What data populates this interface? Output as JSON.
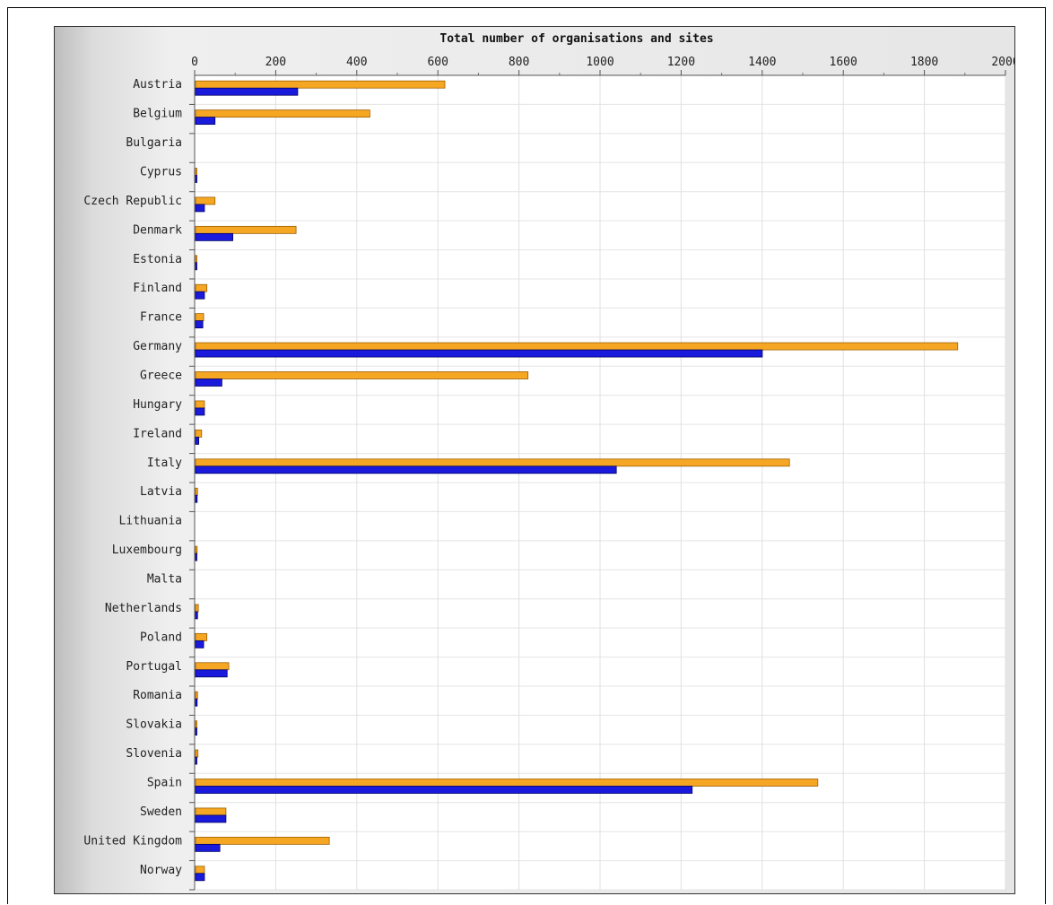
{
  "chart_data": {
    "type": "bar",
    "orientation": "horizontal",
    "title": "Total number of organisations and sites",
    "xlabel": "",
    "ylabel": "",
    "xlim": [
      0,
      2000
    ],
    "x_ticks": [
      "0",
      "200",
      "400",
      "600",
      "800",
      "1000",
      "1200",
      "1400",
      "1600",
      "1800",
      "2000"
    ],
    "x_tick_values": [
      0,
      200,
      400,
      600,
      800,
      1000,
      1200,
      1400,
      1600,
      1800,
      2000
    ],
    "axis_position": "top",
    "grid": true,
    "legend": "none",
    "categories": [
      "Austria",
      "Belgium",
      "Bulgaria",
      "Cyprus",
      "Czech Republic",
      "Denmark",
      "Estonia",
      "Finland",
      "France",
      "Germany",
      "Greece",
      "Hungary",
      "Ireland",
      "Italy",
      "Latvia",
      "Lithuania",
      "Luxembourg",
      "Malta",
      "Netherlands",
      "Poland",
      "Portugal",
      "Romania",
      "Slovakia",
      "Slovenia",
      "Spain",
      "Sweden",
      "United Kingdom",
      "Norway"
    ],
    "series": [
      {
        "color": "#f5a623",
        "values": [
          615,
          430,
          0,
          3,
          48,
          248,
          3,
          28,
          20,
          1880,
          820,
          22,
          15,
          1465,
          5,
          0,
          4,
          0,
          7,
          28,
          82,
          5,
          3,
          6,
          1535,
          75,
          330,
          22
        ]
      },
      {
        "color": "#1a1adc",
        "values": [
          252,
          48,
          0,
          3,
          22,
          92,
          3,
          22,
          18,
          1398,
          65,
          22,
          8,
          1038,
          4,
          0,
          2,
          0,
          5,
          20,
          78,
          4,
          2,
          3,
          1225,
          75,
          60,
          22
        ]
      }
    ]
  }
}
